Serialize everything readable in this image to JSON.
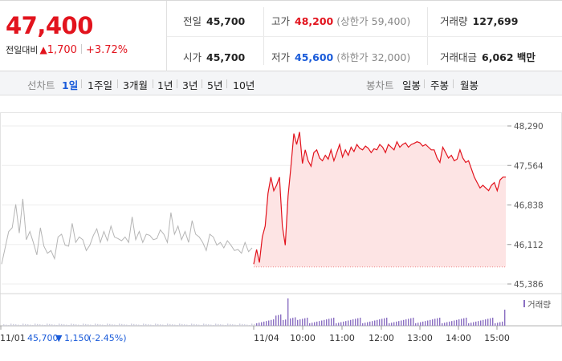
{
  "quote": {
    "price": "47,400",
    "change_label": "전일대비",
    "change_arrow": "▲",
    "change_value": "1,700",
    "change_pct": "+3.72%"
  },
  "stats": {
    "prev_close": {
      "label": "전일",
      "value": "45,700"
    },
    "open": {
      "label": "시가",
      "value": "45,700"
    },
    "high": {
      "label": "고가",
      "value": "48,200",
      "sub": "(상한가 59,400)"
    },
    "low": {
      "label": "저가",
      "value": "45,600",
      "sub": "(하한가 32,000)"
    },
    "volume": {
      "label": "거래량",
      "value": "127,699"
    },
    "turnover": {
      "label": "거래대금",
      "value": "6,062 백만"
    }
  },
  "tabs": {
    "line_label": "선차트",
    "line_periods": [
      "1일",
      "1주일",
      "3개월",
      "1년",
      "3년",
      "5년",
      "10년"
    ],
    "line_active": "1일",
    "candle_label": "봉차트",
    "candle_periods": [
      "일봉",
      "주봉",
      "월봉"
    ]
  },
  "colors": {
    "up": "#e2131d",
    "down": "#1a5bd9",
    "volume": "#8a6fc2",
    "prevday": "#b5b5b5"
  },
  "chart_data": {
    "type": "line",
    "y_ticks": [
      "48,290",
      "47,564",
      "46,838",
      "46,112",
      "45,386"
    ],
    "ylim": [
      45386,
      48290
    ],
    "prev_day": {
      "date": "11/01",
      "close": "45,700",
      "arrow": "▼",
      "change": "1,150",
      "change_pct": "(-2.45%)",
      "values": [
        45750,
        46050,
        46350,
        46420,
        46850,
        46320,
        46950,
        46200,
        46350,
        46150,
        45920,
        46420,
        46080,
        45950,
        46000,
        45850,
        46250,
        46300,
        46100,
        46080,
        46500,
        46150,
        46250,
        46200,
        46000,
        46100,
        46280,
        46400,
        46150,
        46350,
        46180,
        46450,
        46250,
        46220,
        46180,
        46250,
        46150,
        46620,
        46200,
        46350,
        46150,
        46300,
        46280,
        46200,
        46220,
        46380,
        46300,
        46150,
        46700,
        46300,
        46450,
        46200,
        46350,
        46150,
        46550,
        46300,
        46250,
        46150,
        46000,
        46300,
        46250,
        46100,
        46150,
        46050,
        46180,
        46100,
        46000,
        46020,
        45950,
        46150,
        45980,
        46050
      ]
    },
    "today": {
      "date": "11/04",
      "x_labels": [
        "10:00",
        "11:00",
        "12:00",
        "13:00",
        "14:00",
        "15:00"
      ],
      "base_price": 45700,
      "values": [
        45750,
        46020,
        45780,
        46250,
        46450,
        47050,
        47350,
        47100,
        47200,
        47350,
        46450,
        46100,
        47000,
        47550,
        48150,
        47950,
        48180,
        47600,
        47850,
        47650,
        47550,
        47800,
        47850,
        47700,
        47650,
        47750,
        47680,
        47850,
        47650,
        47800,
        47950,
        47720,
        47850,
        47750,
        47900,
        47820,
        47950,
        47880,
        47850,
        47920,
        47880,
        47800,
        47870,
        47850,
        47950,
        47900,
        47800,
        47950,
        47900,
        47850,
        48000,
        47900,
        47950,
        47980,
        47900,
        47950,
        47970,
        48000,
        47980,
        47920,
        47950,
        47900,
        47850,
        47850,
        47700,
        47620,
        47900,
        47800,
        47700,
        47750,
        47650,
        47680,
        47850,
        47700,
        47620,
        47650,
        47500,
        47350,
        47250,
        47150,
        47200,
        47150,
        47100,
        47200,
        47250,
        47100,
        47300,
        47350,
        47350
      ]
    },
    "volume_legend": "거래량"
  }
}
